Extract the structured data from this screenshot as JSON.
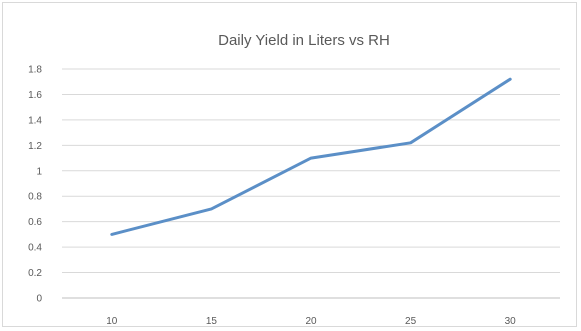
{
  "chart_data": {
    "type": "line",
    "title": "Daily Yield in Liters vs RH",
    "xlabel": "",
    "ylabel": "",
    "x": [
      10,
      15,
      20,
      25,
      30
    ],
    "series": [
      {
        "values": [
          0.5,
          0.7,
          1.1,
          1.22,
          1.72
        ]
      }
    ],
    "ylim": [
      0,
      1.8
    ],
    "y_ticks": [
      "0",
      "0.2",
      "0.4",
      "0.6",
      "0.8",
      "1",
      "1.2",
      "1.4",
      "1.6",
      "1.8"
    ],
    "x_ticks": [
      "10",
      "15",
      "20",
      "25",
      "30"
    ],
    "grid": true,
    "legend": "none",
    "colors": {
      "series": "#5b8fc7",
      "grid": "#d9d9d9",
      "text": "#595959"
    }
  }
}
